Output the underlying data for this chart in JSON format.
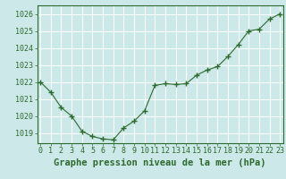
{
  "x": [
    0,
    1,
    2,
    3,
    4,
    5,
    6,
    7,
    8,
    9,
    10,
    11,
    12,
    13,
    14,
    15,
    16,
    17,
    18,
    19,
    20,
    21,
    22,
    23
  ],
  "y": [
    1022.0,
    1021.4,
    1020.5,
    1020.0,
    1019.1,
    1018.8,
    1018.65,
    1018.6,
    1019.3,
    1019.7,
    1020.3,
    1021.8,
    1021.9,
    1021.85,
    1021.9,
    1022.4,
    1022.7,
    1022.9,
    1023.5,
    1024.2,
    1025.0,
    1025.1,
    1025.7,
    1026.0
  ],
  "line_color": "#2d6a2d",
  "marker": "+",
  "plot_bg_color": "#cce8e8",
  "fig_bg_color": "#cce8e8",
  "grid_color": "#ffffff",
  "bottom_bar_color": "#3a6b3a",
  "bottom_text_color": "#ffffff",
  "ytick_label_color": "#1a5c1a",
  "ytick_values": [
    1019,
    1020,
    1021,
    1022,
    1023,
    1024,
    1025,
    1026
  ],
  "ylim_min": 1018.4,
  "ylim_max": 1026.5,
  "xlim_min": -0.3,
  "xlim_max": 23.3,
  "title": "Graphe pression niveau de la mer (hPa)",
  "tick_label_fontsize": 6.0,
  "title_fontsize": 7.5,
  "linewidth": 0.8,
  "markersize": 4.0,
  "markeredgewidth": 1.0
}
